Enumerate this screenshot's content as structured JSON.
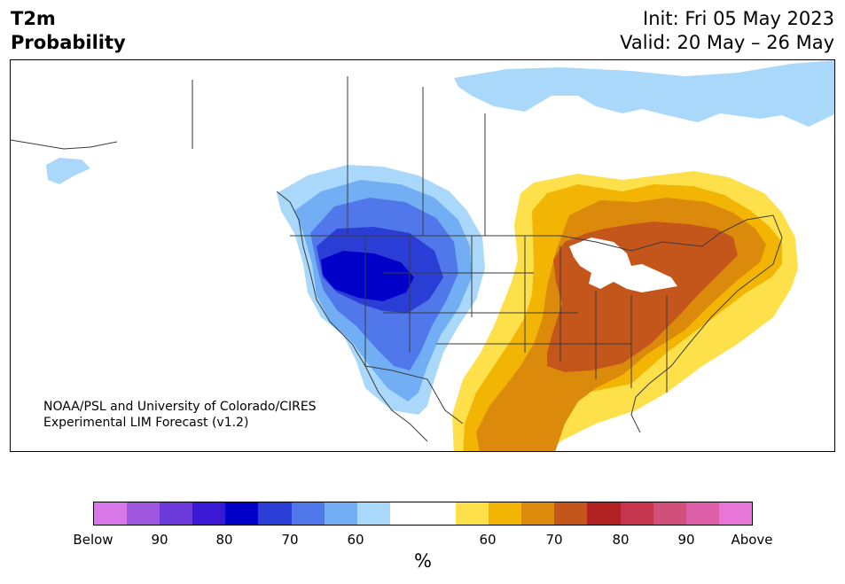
{
  "header": {
    "variable": "T2m",
    "product": "Probability",
    "init": "Init: Fri 05 May 2023",
    "valid": "Valid: 20 May – 26 May"
  },
  "credit": {
    "line1": "NOAA/PSL and University of Colorado/CIRES",
    "line2": "Experimental LIM Forecast (v1.2)"
  },
  "map": {
    "region": "North America",
    "below_normal_colors": [
      "#a9d8fa",
      "#72aef3",
      "#5078ea",
      "#2a3ed6",
      "#0000c9"
    ],
    "above_normal_colors": [
      "#fde04a",
      "#f2b503",
      "#dc8a0c",
      "#c5561b"
    ],
    "water_color": "#a9d8fa",
    "lake_color": "#ffffff",
    "border_color": "#3a3a3a"
  },
  "colorbar": {
    "colors": [
      "#d777e8",
      "#9f57e0",
      "#6c3ada",
      "#3a19d4",
      "#0000c9",
      "#2a3ed6",
      "#5078ea",
      "#72aef3",
      "#a9d8fa",
      "#ffffff",
      "#ffffff",
      "#fde04a",
      "#f2b503",
      "#dc8a0c",
      "#c5561b",
      "#b22222",
      "#c7344e",
      "#d04f7b",
      "#dd5fa8",
      "#e876d8"
    ],
    "tick_labels": [
      "Below",
      "90",
      "80",
      "70",
      "60",
      "60",
      "70",
      "80",
      "90",
      "Above"
    ],
    "unit": "%"
  }
}
